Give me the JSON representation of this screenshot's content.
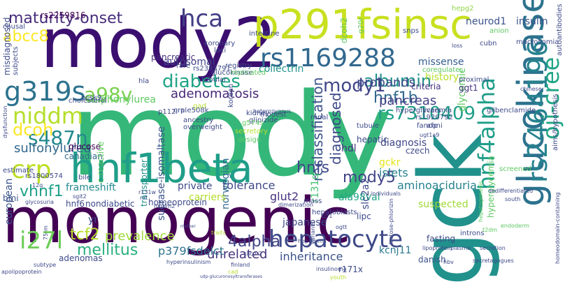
{
  "word_cloud": {
    "words": [
      {
        "text": "mody",
        "color": "#35b779"
      },
      {
        "text": "monogenic",
        "color": "#440154"
      },
      {
        "text": "gck",
        "color": "#21918c"
      },
      {
        "text": "mody2",
        "color": "#3b0f70"
      },
      {
        "text": "p291fsinsc",
        "color": "#c8e020"
      },
      {
        "text": "glucokinase",
        "color": "#2c728e"
      },
      {
        "text": "hnf1beta",
        "color": "#1f9e89"
      },
      {
        "text": "rs1169288",
        "color": "#31688e"
      },
      {
        "text": "hepatocyte",
        "color": "#3e4a89"
      },
      {
        "text": "rs2464196",
        "color": "#26828e"
      },
      {
        "text": "hnf4alpha",
        "color": "#1f9e89"
      },
      {
        "text": "oji-cree",
        "color": "#21a585"
      },
      {
        "text": "g319s",
        "color": "#2c728e"
      },
      {
        "text": "niddm",
        "color": "#b5de2b"
      },
      {
        "text": "crp",
        "color": "#bddf26"
      },
      {
        "text": "i27l",
        "color": "#6ece58"
      },
      {
        "text": "albumin",
        "color": "#21918c"
      },
      {
        "text": "a98v",
        "color": "#7ad151"
      },
      {
        "text": "hca",
        "color": "#433e85"
      },
      {
        "text": "diabetes",
        "color": "#20a486"
      },
      {
        "text": "mody1",
        "color": "#404688"
      },
      {
        "text": "hnf1b",
        "color": "#31688e"
      },
      {
        "text": "s487n",
        "color": "#23898e"
      },
      {
        "text": "dcoh",
        "color": "#fde725"
      },
      {
        "text": "rs7310409",
        "color": "#1f9e89"
      },
      {
        "text": "maturity-onset",
        "color": "#472d7b"
      },
      {
        "text": "abcc8",
        "color": "#fde725"
      },
      {
        "text": "rs2259816",
        "color": "#440154"
      },
      {
        "text": "autosomal",
        "color": "#414487"
      },
      {
        "text": "insulin",
        "color": "#3b528b"
      },
      {
        "text": "neurod1",
        "color": "#3b528b"
      },
      {
        "text": "hepg2",
        "color": "#8fd744"
      },
      {
        "text": "pancreatic",
        "color": "#472d7b"
      },
      {
        "text": "sulfonylurea",
        "color": "#31688e"
      },
      {
        "text": "sulphonylurea",
        "color": "#5ec962"
      },
      {
        "text": "adenomatosis",
        "color": "#482878"
      },
      {
        "text": "collectrin",
        "color": "#21918c"
      },
      {
        "text": "probands",
        "color": "#3e4a89"
      },
      {
        "text": "pancreas",
        "color": "#433e85"
      },
      {
        "text": "missense",
        "color": "#355f8d"
      },
      {
        "text": "history",
        "color": "#b5de2b"
      },
      {
        "text": "glycemic",
        "color": "#5ec962"
      },
      {
        "text": "criteria",
        "color": "#46327e"
      },
      {
        "text": "reclassification",
        "color": "#3b528b"
      },
      {
        "text": "diagnosed",
        "color": "#3e4a89"
      },
      {
        "text": "mody5",
        "color": "#414487"
      },
      {
        "text": "hnfs",
        "color": "#3e4a89"
      },
      {
        "text": "gckr",
        "color": "#e5e419"
      },
      {
        "text": "islets",
        "color": "#26828e"
      },
      {
        "text": "aminoaciduria",
        "color": "#26828e"
      },
      {
        "text": "ala98val",
        "color": "#20a486"
      },
      {
        "text": "glut2",
        "color": "#46327e"
      },
      {
        "text": "tcf2",
        "color": "#b5de2b"
      },
      {
        "text": "prevalence",
        "color": "#a0da39"
      },
      {
        "text": "mellitus",
        "color": "#29af7f"
      },
      {
        "text": "4alpha",
        "color": "#414487"
      },
      {
        "text": "unrelated",
        "color": "#46327e"
      },
      {
        "text": "inheritance",
        "color": "#3b528b"
      },
      {
        "text": "kcnj11",
        "color": "#2a788e"
      },
      {
        "text": "p379fsdelct",
        "color": "#2c728e"
      },
      {
        "text": "vhnf1",
        "color": "#1fa188"
      },
      {
        "text": "frameshift",
        "color": "#23898e"
      },
      {
        "text": "european",
        "color": "#3b528b"
      },
      {
        "text": "tolerance",
        "color": "#3e4a89"
      },
      {
        "text": "private",
        "color": "#3e4a89"
      },
      {
        "text": "norwegian",
        "color": "#31688e"
      },
      {
        "text": "diagnosis",
        "color": "#404688"
      },
      {
        "text": "hdl",
        "color": "#46327e"
      },
      {
        "text": "hepatic",
        "color": "#3e4a89"
      },
      {
        "text": "slc2a2",
        "color": "#3e4a89"
      },
      {
        "text": "hyperglycemia",
        "color": "#5ec962"
      },
      {
        "text": "suspected",
        "color": "#a0da39"
      },
      {
        "text": "japanese",
        "color": "#3e4a89"
      },
      {
        "text": "r131q",
        "color": "#44bf70"
      },
      {
        "text": "glucose",
        "color": "#440154"
      },
      {
        "text": "canadian",
        "color": "#31688e"
      },
      {
        "text": "c-reactive",
        "color": "#5ec962"
      },
      {
        "text": "transporter",
        "color": "#21918c"
      },
      {
        "text": "sucrase-isomaltase",
        "color": "#3b528b"
      },
      {
        "text": "homeoprotein",
        "color": "#3e4a89"
      },
      {
        "text": "carriers",
        "color": "#b5de2b"
      },
      {
        "text": "nondiabetic",
        "color": "#3e4a89"
      },
      {
        "text": "hnf6",
        "color": "#3e4a89"
      },
      {
        "text": "yr",
        "color": "#3e4a89"
      },
      {
        "text": "adenomas",
        "color": "#3e4a89"
      },
      {
        "text": "lipc",
        "color": "#3e4a89"
      },
      {
        "text": "fasting",
        "color": "#3e4a89"
      },
      {
        "text": "danish",
        "color": "#3b528b"
      },
      {
        "text": "r171x",
        "color": "#3e4a89"
      },
      {
        "text": "bmi",
        "color": "#3b528b"
      },
      {
        "text": "ggt1",
        "color": "#46327e"
      },
      {
        "text": "dcoh2",
        "color": "#5ec962"
      },
      {
        "text": "g20r",
        "color": "#5ec962"
      },
      {
        "text": "snps",
        "color": "#3e4a89"
      },
      {
        "text": "macrosomia",
        "color": "#3e4a89"
      },
      {
        "text": "anion",
        "color": "#5ec962"
      },
      {
        "text": "autoantibodies",
        "color": "#3e4a89"
      },
      {
        "text": "aims/hypothesis",
        "color": "#3e4a89"
      },
      {
        "text": "causal",
        "color": "#3e4a89"
      },
      {
        "text": "misdiagnosed",
        "color": "#3e4a89"
      },
      {
        "text": "subjects",
        "color": "#3e4a89"
      },
      {
        "text": "coronary",
        "color": "#3e4a89"
      },
      {
        "text": "loci",
        "color": "#3e4a89"
      },
      {
        "text": "intestine",
        "color": "#3e4a89"
      },
      {
        "text": "glucokinase",
        "color": "#3e4a89"
      },
      {
        "text": "registry",
        "color": "#3e4a89"
      },
      {
        "text": "replicated",
        "color": "#5ec962"
      },
      {
        "text": "rs2393791",
        "color": "#3e4a89"
      },
      {
        "text": "rare",
        "color": "#3e4a89"
      },
      {
        "text": "hla",
        "color": "#3e4a89"
      },
      {
        "text": "tubular",
        "color": "#3e4a89"
      },
      {
        "text": "pcsk9",
        "color": "#3e4a89"
      },
      {
        "text": "cholesterol",
        "color": "#3e4a89"
      },
      {
        "text": "p112l",
        "color": "#3e4a89"
      },
      {
        "text": "oral",
        "color": "#3e4a89"
      },
      {
        "text": "korean",
        "color": "#3e4a89"
      },
      {
        "text": "kidney",
        "color": "#3e4a89"
      },
      {
        "text": "glipizide",
        "color": "#3e4a89"
      },
      {
        "text": "heterozygous",
        "color": "#3e4a89"
      },
      {
        "text": "rs1920792",
        "color": "#3e4a89"
      },
      {
        "text": "hyperglycaemia",
        "color": "#3e4a89"
      },
      {
        "text": "fanconi",
        "color": "#3e4a89"
      },
      {
        "text": "glibenclamide",
        "color": "#3e4a89"
      },
      {
        "text": "proximal",
        "color": "#3e4a89"
      },
      {
        "text": "coregulates",
        "color": "#5ec962"
      },
      {
        "text": "loss",
        "color": "#3e4a89"
      },
      {
        "text": "cubn",
        "color": "#3e4a89"
      },
      {
        "text": "chinese",
        "color": "#3e4a89"
      },
      {
        "text": "dysfunction",
        "color": "#3e4a89"
      },
      {
        "text": "gad",
        "color": "#b5de2b"
      },
      {
        "text": "ancestry",
        "color": "#3e4a89"
      },
      {
        "text": "overweight",
        "color": "#3e4a89"
      },
      {
        "text": "p.e508k",
        "color": "#3e4a89"
      },
      {
        "text": "g574s",
        "color": "#5ec962"
      },
      {
        "text": "secretory",
        "color": "#b5de2b"
      },
      {
        "text": "modest",
        "color": "#3e4a89"
      },
      {
        "text": "renal",
        "color": "#3e4a89"
      },
      {
        "text": "design",
        "color": "#5ec962"
      },
      {
        "text": "livers",
        "color": "#3e4a89"
      },
      {
        "text": "afp",
        "color": "#3e4a89"
      },
      {
        "text": "tubule",
        "color": "#3e4a89"
      },
      {
        "text": "ugt1a9",
        "color": "#3e4a89"
      },
      {
        "text": "czech",
        "color": "#3e4a89"
      },
      {
        "text": "screened",
        "color": "#5ec962"
      },
      {
        "text": "estimate",
        "color": "#3e4a89"
      },
      {
        "text": "rs1800574",
        "color": "#3e4a89"
      },
      {
        "text": "bile",
        "color": "#3e4a89"
      },
      {
        "text": "12q",
        "color": "#3e4a89"
      },
      {
        "text": "r131w",
        "color": "#3e4a89"
      },
      {
        "text": "dimerization",
        "color": "#3e4a89"
      },
      {
        "text": "mass",
        "color": "#3e4a89"
      },
      {
        "text": "hepatoblasts",
        "color": "#3e4a89"
      },
      {
        "text": "individuals",
        "color": "#3e4a89"
      },
      {
        "text": "dedifferentiated",
        "color": "#3e4a89"
      },
      {
        "text": "south",
        "color": "#3e4a89"
      },
      {
        "text": "glycosuria",
        "color": "#3e4a89"
      },
      {
        "text": "sgit2",
        "color": "#3e4a89"
      },
      {
        "text": "niddm2",
        "color": "#3e4a89"
      },
      {
        "text": "rvt",
        "color": "#3e4a89"
      },
      {
        "text": "hepatoma",
        "color": "#3e4a89"
      },
      {
        "text": "hepatogenesis",
        "color": "#5ec962"
      },
      {
        "text": "endoderm",
        "color": "#5ec962"
      },
      {
        "text": "homeodomain-containing",
        "color": "#3e4a89"
      },
      {
        "text": "75-m",
        "color": "#3e4a89"
      },
      {
        "text": "variants",
        "color": "#3e4a89"
      },
      {
        "text": "tcf1",
        "color": "#3e4a89"
      },
      {
        "text": "ogtt",
        "color": "#3e4a89"
      },
      {
        "text": "lactose-phlorizin",
        "color": "#3e4a89"
      },
      {
        "text": "introns",
        "color": "#3e4a89"
      },
      {
        "text": "t2dm",
        "color": "#5ec962"
      },
      {
        "text": "traits",
        "color": "#b5de2b"
      },
      {
        "text": "finland",
        "color": "#3e4a89"
      },
      {
        "text": "cad",
        "color": "#b5de2b"
      },
      {
        "text": "hyperinsulinism",
        "color": "#3e4a89"
      },
      {
        "text": "lipoprotein",
        "color": "#3e4a89"
      },
      {
        "text": "plasma",
        "color": "#3e4a89"
      },
      {
        "text": "secretion",
        "color": "#3e4a89"
      },
      {
        "text": "caco-2",
        "color": "#3e4a89"
      },
      {
        "text": "insulinoma",
        "color": "#3e4a89"
      },
      {
        "text": "hbv",
        "color": "#3e4a89"
      },
      {
        "text": "secretagogues",
        "color": "#3e4a89"
      },
      {
        "text": "apolipoprotein",
        "color": "#3e4a89"
      },
      {
        "text": "subtype",
        "color": "#3e4a89"
      },
      {
        "text": "youth",
        "color": "#b5de2b"
      },
      {
        "text": "udp-glucuronosyltransferases",
        "color": "#3e4a89"
      },
      {
        "text": "mother",
        "color": "#3e4a89"
      }
    ]
  }
}
